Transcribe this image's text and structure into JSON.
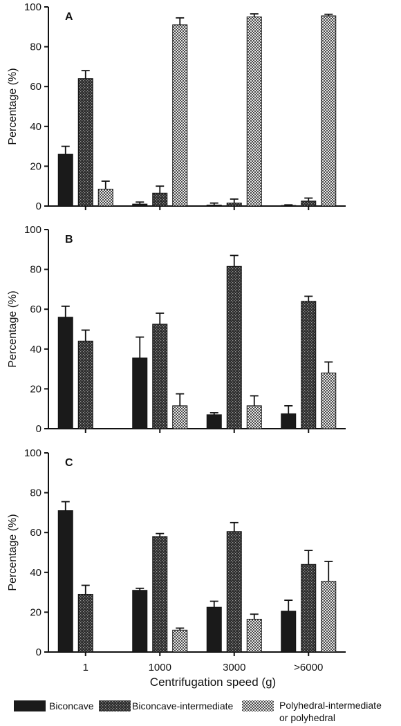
{
  "chart_data": [
    {
      "type": "bar",
      "panel": "A",
      "ylabel": "Percentage (%)",
      "xlabel": "",
      "ylim": [
        0,
        100
      ],
      "yticks": [
        "0",
        "20",
        "40",
        "60",
        "80",
        "100"
      ],
      "categories": [
        "1",
        "1000",
        "3000",
        ">6000"
      ],
      "series": [
        {
          "name": "Biconcave",
          "values": [
            26,
            1,
            0.5,
            0.3
          ],
          "errors": [
            4,
            1,
            1,
            0.3
          ]
        },
        {
          "name": "Biconcave-intermediate",
          "values": [
            64,
            6.5,
            1.5,
            2.5
          ],
          "errors": [
            4,
            3.5,
            2,
            1.5
          ]
        },
        {
          "name": "Polyhedral-intermediate or polyhedral",
          "values": [
            8.5,
            91,
            95,
            95.5
          ],
          "errors": [
            4,
            3.5,
            1.5,
            0.8
          ]
        }
      ]
    },
    {
      "type": "bar",
      "panel": "B",
      "ylabel": "Percentage (%)",
      "xlabel": "",
      "ylim": [
        0,
        100
      ],
      "yticks": [
        "0",
        "20",
        "40",
        "60",
        "80",
        "100"
      ],
      "categories": [
        "1",
        "1000",
        "3000",
        ">6000"
      ],
      "series": [
        {
          "name": "Biconcave",
          "values": [
            56,
            35.5,
            7,
            7.5
          ],
          "errors": [
            5.5,
            10.5,
            1,
            4
          ]
        },
        {
          "name": "Biconcave-intermediate",
          "values": [
            44,
            52.5,
            81.5,
            64
          ],
          "errors": [
            5.5,
            5.5,
            5.5,
            2.5
          ]
        },
        {
          "name": "Polyhedral-intermediate or polyhedral",
          "values": [
            0,
            11.5,
            11.5,
            28
          ],
          "errors": [
            0,
            6,
            5,
            5.5
          ]
        }
      ]
    },
    {
      "type": "bar",
      "panel": "C",
      "ylabel": "Percentage (%)",
      "xlabel": "Centrifugation speed (g)",
      "ylim": [
        0,
        100
      ],
      "yticks": [
        "0",
        "20",
        "40",
        "60",
        "80",
        "100"
      ],
      "categories": [
        "1",
        "1000",
        "3000",
        ">6000"
      ],
      "series": [
        {
          "name": "Biconcave",
          "values": [
            71,
            31,
            22.5,
            20.5
          ],
          "errors": [
            4.5,
            1,
            3,
            5.5
          ]
        },
        {
          "name": "Biconcave-intermediate",
          "values": [
            29,
            58,
            60.5,
            44
          ],
          "errors": [
            4.5,
            1.5,
            4.5,
            7
          ]
        },
        {
          "name": "Polyhedral-intermediate or polyhedral",
          "values": [
            0,
            11,
            16.5,
            35.5
          ],
          "errors": [
            0,
            1,
            2.5,
            10
          ]
        }
      ]
    }
  ],
  "legend": [
    {
      "label": "Biconcave",
      "style": "solid"
    },
    {
      "label": "Biconcave-intermediate",
      "style": "dark-checker"
    },
    {
      "label": "Polyhedral-intermediate or polyhedral",
      "lines": [
        "Polyhedral-intermediate",
        "or polyhedral"
      ],
      "style": "light-checker"
    }
  ],
  "colors": {
    "solid": "#1a1a1a",
    "dark_pattern": "#2b2b2b",
    "light_pattern": "#8c8c8c",
    "axis": "#111111"
  }
}
